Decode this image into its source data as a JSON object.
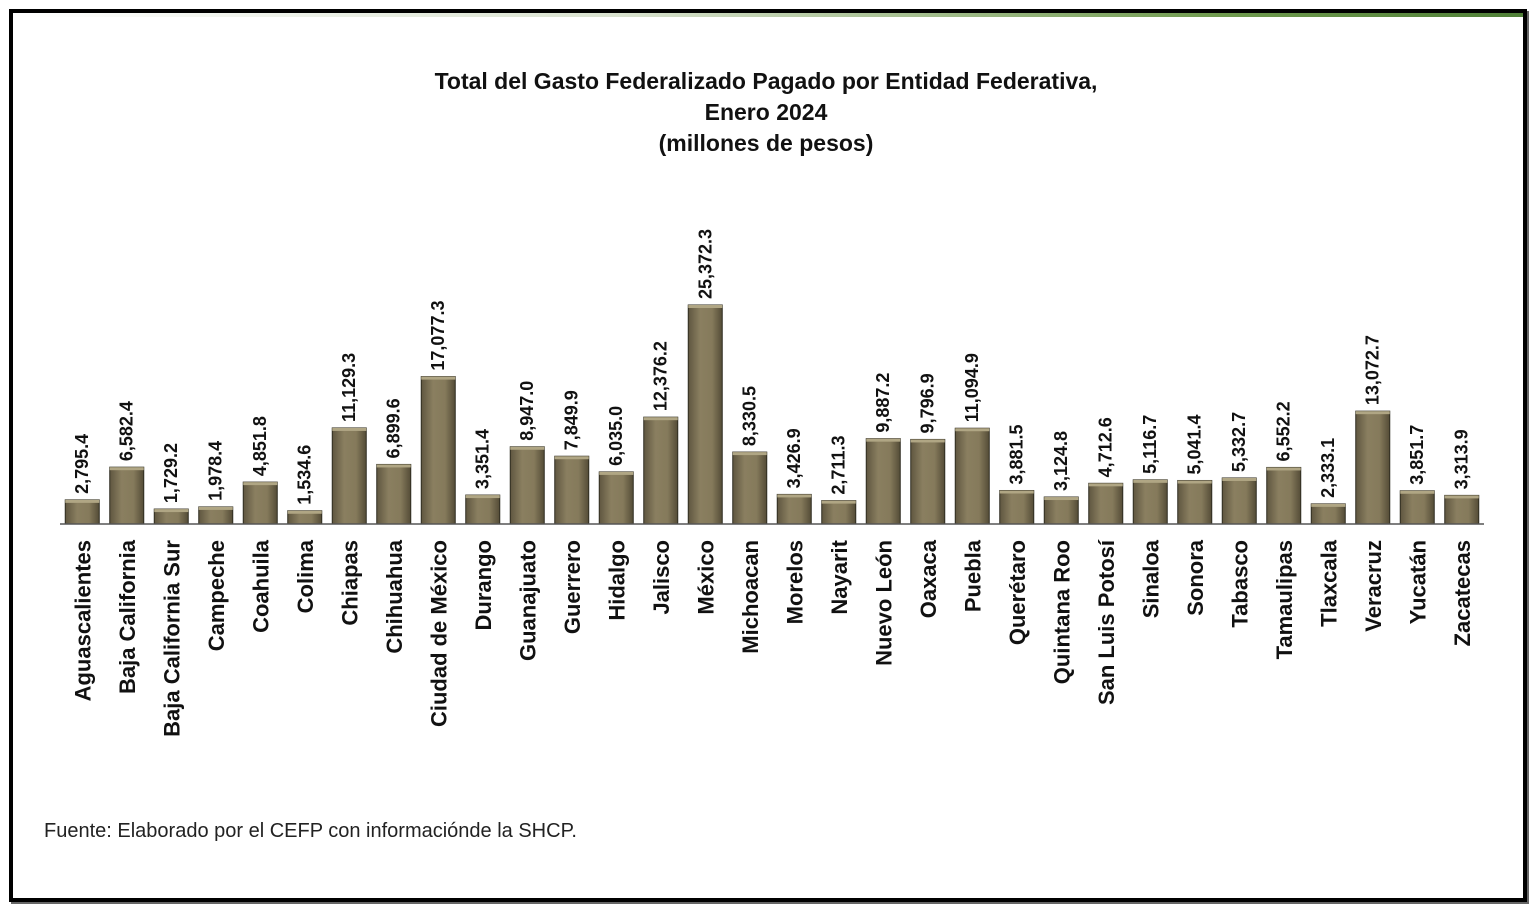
{
  "title": {
    "line1": "Total del Gasto Federalizado Pagado por Entidad Federativa,",
    "line2": "Enero 2024",
    "line3": "(millones de pesos)"
  },
  "source": "Fuente: Elaborado por el CEFP con informaciónde la SHCP.",
  "colors": {
    "bar": "#857a5b",
    "bar_dark": "#5a523b",
    "bar_top": "#b0a684",
    "frame": "#000000",
    "accent": "#4f7f37"
  },
  "chart_data": {
    "type": "bar",
    "title": "Total del Gasto Federalizado Pagado por Entidad Federativa, Enero 2024 (millones de pesos)",
    "xlabel": "",
    "ylabel": "",
    "ylim": [
      0,
      25372.3
    ],
    "grid": false,
    "categories": [
      "Aguascalientes",
      "Baja California",
      "Baja California Sur",
      "Campeche",
      "Coahuila",
      "Colima",
      "Chiapas",
      "Chihuahua",
      "Ciudad de México",
      "Durango",
      "Guanajuato",
      "Guerrero",
      "Hidalgo",
      "Jalisco",
      "México",
      "Michoacan",
      "Morelos",
      "Nayarit",
      "Nuevo León",
      "Oaxaca",
      "Puebla",
      "Querétaro",
      "Quintana Roo",
      "San Luis Potosí",
      "Sinaloa",
      "Sonora",
      "Tabasco",
      "Tamaulipas",
      "Tlaxcala",
      "Veracruz",
      "Yucatán",
      "Zacatecas"
    ],
    "values": [
      2795.4,
      6582.4,
      1729.2,
      1978.4,
      4851.8,
      1534.6,
      11129.3,
      6899.6,
      17077.3,
      3351.4,
      8947.0,
      7849.9,
      6035.0,
      12376.2,
      25372.3,
      8330.5,
      3426.9,
      2711.3,
      9887.2,
      9796.9,
      11094.9,
      3881.5,
      3124.8,
      4712.6,
      5116.7,
      5041.4,
      5332.7,
      6552.2,
      2333.1,
      13072.7,
      3851.7,
      3313.9
    ],
    "labels": [
      "2,795.4",
      "6,582.4",
      "1,729.2",
      "1,978.4",
      "4,851.8",
      "1,534.6",
      "11,129.3",
      "6,899.6",
      "17,077.3",
      "3,351.4",
      "8,947.0",
      "7,849.9",
      "6,035.0",
      "12,376.2",
      "25,372.3",
      "8,330.5",
      "3,426.9",
      "2,711.3",
      "9,887.2",
      "9,796.9",
      "11,094.9",
      "3,881.5",
      "3,124.8",
      "4,712.6",
      "5,116.7",
      "5,041.4",
      "5,332.7",
      "6,552.2",
      "2,333.1",
      "13,072.7",
      "3,851.7",
      "3,313.9"
    ]
  }
}
